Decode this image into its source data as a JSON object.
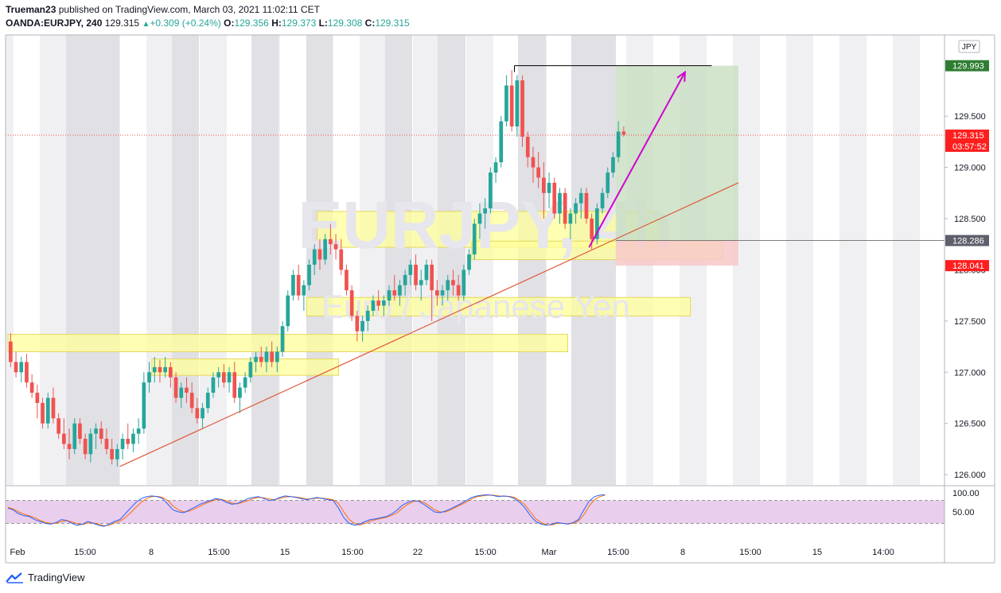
{
  "header": {
    "publisher": "Trueman23",
    "published_text": "published on TradingView.com, March 03, 2021 11:02:11 CET",
    "symbol": "OANDA:EURJPY, 240",
    "last": "129.315",
    "change": "+0.309 (+0.24%)",
    "o_label": "O:",
    "o": "129.356",
    "h_label": "H:",
    "h": "129.373",
    "l_label": "L:",
    "l": "129.308",
    "c_label": "C:",
    "c": "129.315"
  },
  "footer": {
    "brand": "TradingView"
  },
  "colors": {
    "up": "#26a69a",
    "down": "#ef5350",
    "zone": "#ffff99",
    "target_zone": "#c8dfc0",
    "stop_zone": "#f8c8c8",
    "arrow": "#d100d1",
    "trendline": "#e05a3a",
    "stoch_bg": "#e1bee7",
    "k_line": "#2962ff",
    "d_line": "#ff6d00"
  },
  "chart_data": {
    "type": "candlestick",
    "watermark_symbol": "EURJPY, 4h",
    "watermark_name": "Euro / Japanese Yen",
    "currency_badge": "JPY",
    "y_axis_ticks": [
      "126.000",
      "126.500",
      "127.000",
      "127.500",
      "128.000",
      "128.500",
      "129.000",
      "129.500"
    ],
    "ylim": [
      125.9,
      130.2
    ],
    "x_axis_ticks": [
      "Feb",
      "15:00",
      "8",
      "15:00",
      "15",
      "15:00",
      "22",
      "15:00",
      "Mar",
      "15:00",
      "8",
      "15:00",
      "15",
      "14:00"
    ],
    "price_labels": {
      "target": "129.993",
      "last": "129.315",
      "countdown": "03:57:52",
      "entry": "128.286",
      "stop": "128.041"
    },
    "zones": [
      {
        "from_bar": 0,
        "to_bar": 105,
        "low": 127.2,
        "high": 127.37
      },
      {
        "from_bar": 27,
        "to_bar": 62,
        "low": 126.97,
        "high": 127.13
      },
      {
        "from_bar": 56,
        "to_bar": 128,
        "low": 127.55,
        "high": 127.73
      },
      {
        "from_bar": 58,
        "to_bar": 122,
        "low": 128.22,
        "high": 128.57
      },
      {
        "from_bar": 87,
        "to_bar": 134,
        "low": 128.1,
        "high": 128.28
      }
    ],
    "target_zone": {
      "from_bar": 114,
      "to_bar": 137,
      "low": 128.286,
      "high": 129.993
    },
    "stop_zone": {
      "from_bar": 114,
      "to_bar": 137,
      "low": 128.041,
      "high": 128.286
    },
    "trendline": {
      "x1": 21,
      "y1": 126.08,
      "x2": 137,
      "y2": 128.85
    },
    "target_line": {
      "x1": 95,
      "x2": 132,
      "y": 129.993
    },
    "projection_arrow": {
      "x1": 109,
      "y1": 128.22,
      "x2": 127,
      "y2": 129.93
    },
    "candles": [
      [
        127.3,
        127.38,
        127.05,
        127.1
      ],
      [
        127.1,
        127.2,
        126.95,
        127.0
      ],
      [
        127.0,
        127.15,
        126.9,
        127.1
      ],
      [
        127.1,
        127.18,
        126.85,
        126.9
      ],
      [
        126.9,
        126.98,
        126.75,
        126.8
      ],
      [
        126.8,
        126.88,
        126.55,
        126.7
      ],
      [
        126.7,
        126.75,
        126.45,
        126.5
      ],
      [
        126.5,
        126.8,
        126.45,
        126.75
      ],
      [
        126.75,
        126.85,
        126.5,
        126.55
      ],
      [
        126.55,
        126.6,
        126.35,
        126.4
      ],
      [
        126.4,
        126.55,
        126.25,
        126.3
      ],
      [
        126.3,
        126.45,
        126.15,
        126.25
      ],
      [
        126.25,
        126.55,
        126.2,
        126.5
      ],
      [
        126.5,
        126.55,
        126.3,
        126.35
      ],
      [
        126.35,
        126.4,
        126.15,
        126.2
      ],
      [
        126.2,
        126.45,
        126.12,
        126.4
      ],
      [
        126.4,
        126.5,
        126.25,
        126.45
      ],
      [
        126.45,
        126.52,
        126.3,
        126.35
      ],
      [
        126.35,
        126.45,
        126.2,
        126.25
      ],
      [
        126.25,
        126.35,
        126.1,
        126.15
      ],
      [
        126.15,
        126.3,
        126.08,
        126.25
      ],
      [
        126.25,
        126.4,
        126.15,
        126.35
      ],
      [
        126.35,
        126.5,
        126.25,
        126.3
      ],
      [
        126.3,
        126.45,
        126.22,
        126.4
      ],
      [
        126.4,
        126.55,
        126.3,
        126.45
      ],
      [
        126.45,
        127.0,
        126.4,
        126.9
      ],
      [
        126.9,
        127.1,
        126.8,
        127.0
      ],
      [
        127.0,
        127.15,
        126.9,
        127.05
      ],
      [
        127.05,
        127.12,
        126.9,
        127.0
      ],
      [
        127.0,
        127.15,
        126.95,
        127.05
      ],
      [
        127.05,
        127.1,
        126.85,
        126.95
      ],
      [
        126.95,
        127.0,
        126.7,
        126.75
      ],
      [
        126.75,
        126.9,
        126.65,
        126.85
      ],
      [
        126.85,
        126.95,
        126.7,
        126.8
      ],
      [
        126.8,
        126.9,
        126.6,
        126.65
      ],
      [
        126.65,
        126.75,
        126.5,
        126.55
      ],
      [
        126.55,
        126.7,
        126.45,
        126.65
      ],
      [
        126.65,
        126.85,
        126.6,
        126.8
      ],
      [
        126.8,
        127.0,
        126.75,
        126.95
      ],
      [
        126.95,
        127.05,
        126.85,
        127.0
      ],
      [
        127.0,
        127.08,
        126.85,
        126.9
      ],
      [
        126.9,
        127.05,
        126.8,
        127.0
      ],
      [
        127.0,
        127.1,
        126.7,
        126.75
      ],
      [
        126.75,
        126.9,
        126.6,
        126.85
      ],
      [
        126.85,
        127.0,
        126.8,
        126.95
      ],
      [
        126.95,
        127.15,
        126.9,
        127.1
      ],
      [
        127.1,
        127.2,
        127.0,
        127.15
      ],
      [
        127.15,
        127.25,
        127.05,
        127.1
      ],
      [
        127.1,
        127.25,
        127.0,
        127.2
      ],
      [
        127.2,
        127.3,
        127.05,
        127.1
      ],
      [
        127.1,
        127.25,
        127.0,
        127.2
      ],
      [
        127.2,
        127.5,
        127.15,
        127.45
      ],
      [
        127.45,
        127.8,
        127.4,
        127.75
      ],
      [
        127.75,
        128.0,
        127.7,
        127.95
      ],
      [
        127.95,
        128.05,
        127.7,
        127.75
      ],
      [
        127.75,
        127.9,
        127.6,
        127.85
      ],
      [
        127.85,
        128.1,
        127.8,
        128.05
      ],
      [
        128.05,
        128.25,
        127.95,
        128.2
      ],
      [
        128.2,
        128.3,
        128.0,
        128.1
      ],
      [
        128.1,
        128.35,
        128.05,
        128.3
      ],
      [
        128.3,
        128.45,
        128.15,
        128.25
      ],
      [
        128.25,
        128.35,
        128.1,
        128.2
      ],
      [
        128.2,
        128.3,
        127.95,
        128.0
      ],
      [
        128.0,
        128.05,
        127.75,
        127.8
      ],
      [
        127.8,
        127.85,
        127.5,
        127.55
      ],
      [
        127.55,
        127.6,
        127.3,
        127.4
      ],
      [
        127.4,
        127.55,
        127.3,
        127.5
      ],
      [
        127.5,
        127.65,
        127.4,
        127.6
      ],
      [
        127.6,
        127.75,
        127.55,
        127.7
      ],
      [
        127.7,
        127.8,
        127.6,
        127.65
      ],
      [
        127.65,
        127.75,
        127.55,
        127.7
      ],
      [
        127.7,
        127.85,
        127.65,
        127.8
      ],
      [
        127.8,
        127.95,
        127.7,
        127.75
      ],
      [
        127.75,
        127.9,
        127.65,
        127.85
      ],
      [
        127.85,
        128.0,
        127.75,
        127.95
      ],
      [
        127.95,
        128.1,
        127.85,
        128.05
      ],
      [
        128.05,
        128.15,
        127.8,
        127.85
      ],
      [
        127.85,
        128.0,
        127.7,
        127.9
      ],
      [
        127.9,
        128.1,
        127.85,
        128.05
      ],
      [
        128.05,
        128.1,
        127.5,
        127.8
      ],
      [
        127.8,
        127.9,
        127.65,
        127.75
      ],
      [
        127.75,
        127.85,
        127.65,
        127.8
      ],
      [
        127.8,
        127.95,
        127.7,
        127.9
      ],
      [
        127.9,
        128.0,
        127.75,
        127.85
      ],
      [
        127.85,
        127.95,
        127.7,
        127.75
      ],
      [
        127.75,
        128.05,
        127.7,
        128.0
      ],
      [
        128.0,
        128.2,
        127.95,
        128.15
      ],
      [
        128.15,
        128.5,
        128.1,
        128.45
      ],
      [
        128.45,
        128.65,
        128.3,
        128.55
      ],
      [
        128.55,
        128.7,
        128.4,
        128.6
      ],
      [
        128.6,
        129.0,
        128.55,
        128.95
      ],
      [
        128.95,
        129.1,
        128.85,
        129.05
      ],
      [
        129.05,
        129.5,
        129.0,
        129.45
      ],
      [
        129.45,
        129.9,
        129.4,
        129.8
      ],
      [
        129.8,
        129.95,
        129.35,
        129.4
      ],
      [
        129.4,
        129.9,
        129.3,
        129.85
      ],
      [
        129.85,
        129.9,
        129.2,
        129.3
      ],
      [
        129.3,
        129.35,
        129.0,
        129.1
      ],
      [
        129.1,
        129.2,
        128.85,
        129.0
      ],
      [
        129.0,
        129.15,
        128.8,
        128.9
      ],
      [
        128.9,
        129.05,
        128.5,
        128.75
      ],
      [
        128.75,
        128.95,
        128.6,
        128.85
      ],
      [
        128.85,
        128.9,
        128.5,
        128.55
      ],
      [
        128.55,
        128.8,
        128.45,
        128.75
      ],
      [
        128.75,
        128.8,
        128.4,
        128.45
      ],
      [
        128.45,
        128.6,
        128.3,
        128.55
      ],
      [
        128.55,
        128.7,
        128.45,
        128.65
      ],
      [
        128.65,
        128.8,
        128.5,
        128.75
      ],
      [
        128.75,
        128.8,
        128.45,
        128.5
      ],
      [
        128.5,
        128.55,
        128.2,
        128.3
      ],
      [
        128.3,
        128.65,
        128.25,
        128.6
      ],
      [
        128.6,
        128.8,
        128.55,
        128.75
      ],
      [
        128.75,
        129.0,
        128.7,
        128.95
      ],
      [
        128.95,
        129.15,
        128.9,
        129.1
      ],
      [
        129.1,
        129.45,
        129.05,
        129.35
      ],
      [
        129.35,
        129.4,
        129.3,
        129.32
      ]
    ],
    "stoch_ticks": [
      "100.00",
      "50.00"
    ],
    "stoch_k": [
      60,
      55,
      45,
      40,
      38,
      30,
      25,
      20,
      18,
      22,
      30,
      28,
      20,
      15,
      18,
      25,
      20,
      15,
      12,
      18,
      25,
      30,
      45,
      60,
      75,
      85,
      90,
      92,
      90,
      85,
      70,
      55,
      50,
      48,
      55,
      62,
      70,
      75,
      80,
      85,
      82,
      75,
      70,
      72,
      78,
      85,
      88,
      90,
      85,
      80,
      82,
      88,
      92,
      90,
      88,
      85,
      82,
      85,
      88,
      85,
      82,
      80,
      60,
      35,
      20,
      15,
      18,
      25,
      30,
      32,
      35,
      38,
      45,
      55,
      68,
      75,
      80,
      78,
      70,
      60,
      50,
      48,
      52,
      58,
      65,
      72,
      80,
      88,
      92,
      94,
      95,
      93,
      90,
      92,
      90,
      85,
      75,
      60,
      40,
      25,
      18,
      15,
      18,
      22,
      20,
      18,
      22,
      30,
      55,
      78,
      90,
      94,
      95
    ],
    "stoch_d": [
      62,
      58,
      50,
      44,
      40,
      35,
      28,
      23,
      20,
      20,
      25,
      27,
      24,
      19,
      17,
      21,
      21,
      18,
      14,
      15,
      21,
      26,
      35,
      48,
      62,
      75,
      85,
      90,
      91,
      88,
      80,
      65,
      55,
      50,
      52,
      58,
      65,
      72,
      77,
      82,
      83,
      79,
      73,
      71,
      75,
      80,
      85,
      88,
      87,
      84,
      82,
      85,
      89,
      90,
      89,
      87,
      84,
      84,
      86,
      86,
      84,
      82,
      72,
      50,
      30,
      20,
      16,
      20,
      26,
      30,
      33,
      36,
      41,
      48,
      60,
      70,
      77,
      79,
      75,
      66,
      56,
      50,
      50,
      55,
      62,
      69,
      76,
      84,
      90,
      92,
      94,
      94,
      92,
      91,
      91,
      88,
      80,
      68,
      50,
      32,
      22,
      17,
      16,
      20,
      20,
      19,
      20,
      26,
      42,
      65,
      82,
      90,
      94
    ]
  }
}
